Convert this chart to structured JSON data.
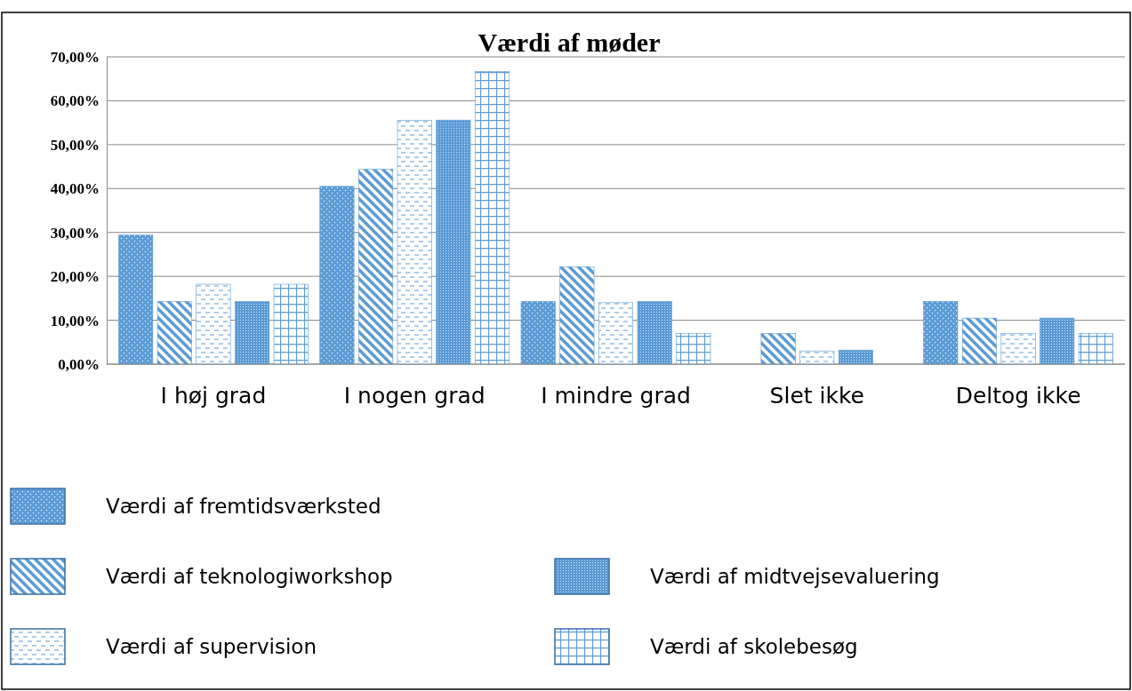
{
  "chart_data": {
    "type": "bar",
    "title": "Værdi af møder",
    "categories": [
      "I høj grad",
      "I nogen grad",
      "I mindre grad",
      "Slet ikke",
      "Deltog ikke"
    ],
    "series": [
      {
        "name": "Værdi af fremtidsværksted",
        "color": "#5b9bd5",
        "values": [
          29.4,
          40.5,
          14.3,
          0,
          14.3
        ]
      },
      {
        "name": "Værdi af teknologiworkshop",
        "color": "#5b9bd5",
        "values": [
          14.3,
          44.4,
          22.2,
          7.0,
          10.5
        ]
      },
      {
        "name": "Værdi af supervision",
        "color": "#5b9bd5",
        "values": [
          18.2,
          55.5,
          14.0,
          3.0,
          7.0
        ]
      },
      {
        "name": "Værdi af midtvejsevaluering",
        "color": "#5b9bd5",
        "values": [
          14.3,
          55.6,
          14.3,
          3.2,
          10.5
        ]
      },
      {
        "name": "Værdi af skolebesøg",
        "color": "#5b9bd5",
        "values": [
          18.2,
          66.7,
          7.0,
          0,
          7.0
        ]
      }
    ],
    "ylim": [
      0,
      70
    ],
    "yticks": [
      {
        "value": 0,
        "label": "0,00%"
      },
      {
        "value": 10,
        "label": "10,00%"
      },
      {
        "value": 20,
        "label": "20,00%"
      },
      {
        "value": 30,
        "label": "30,00%"
      },
      {
        "value": 40,
        "label": "40,00%"
      },
      {
        "value": 50,
        "label": "50,00%"
      },
      {
        "value": 60,
        "label": "60,00%"
      },
      {
        "value": 70,
        "label": "70,00%"
      }
    ],
    "grid": "y",
    "legend": "bottom"
  }
}
